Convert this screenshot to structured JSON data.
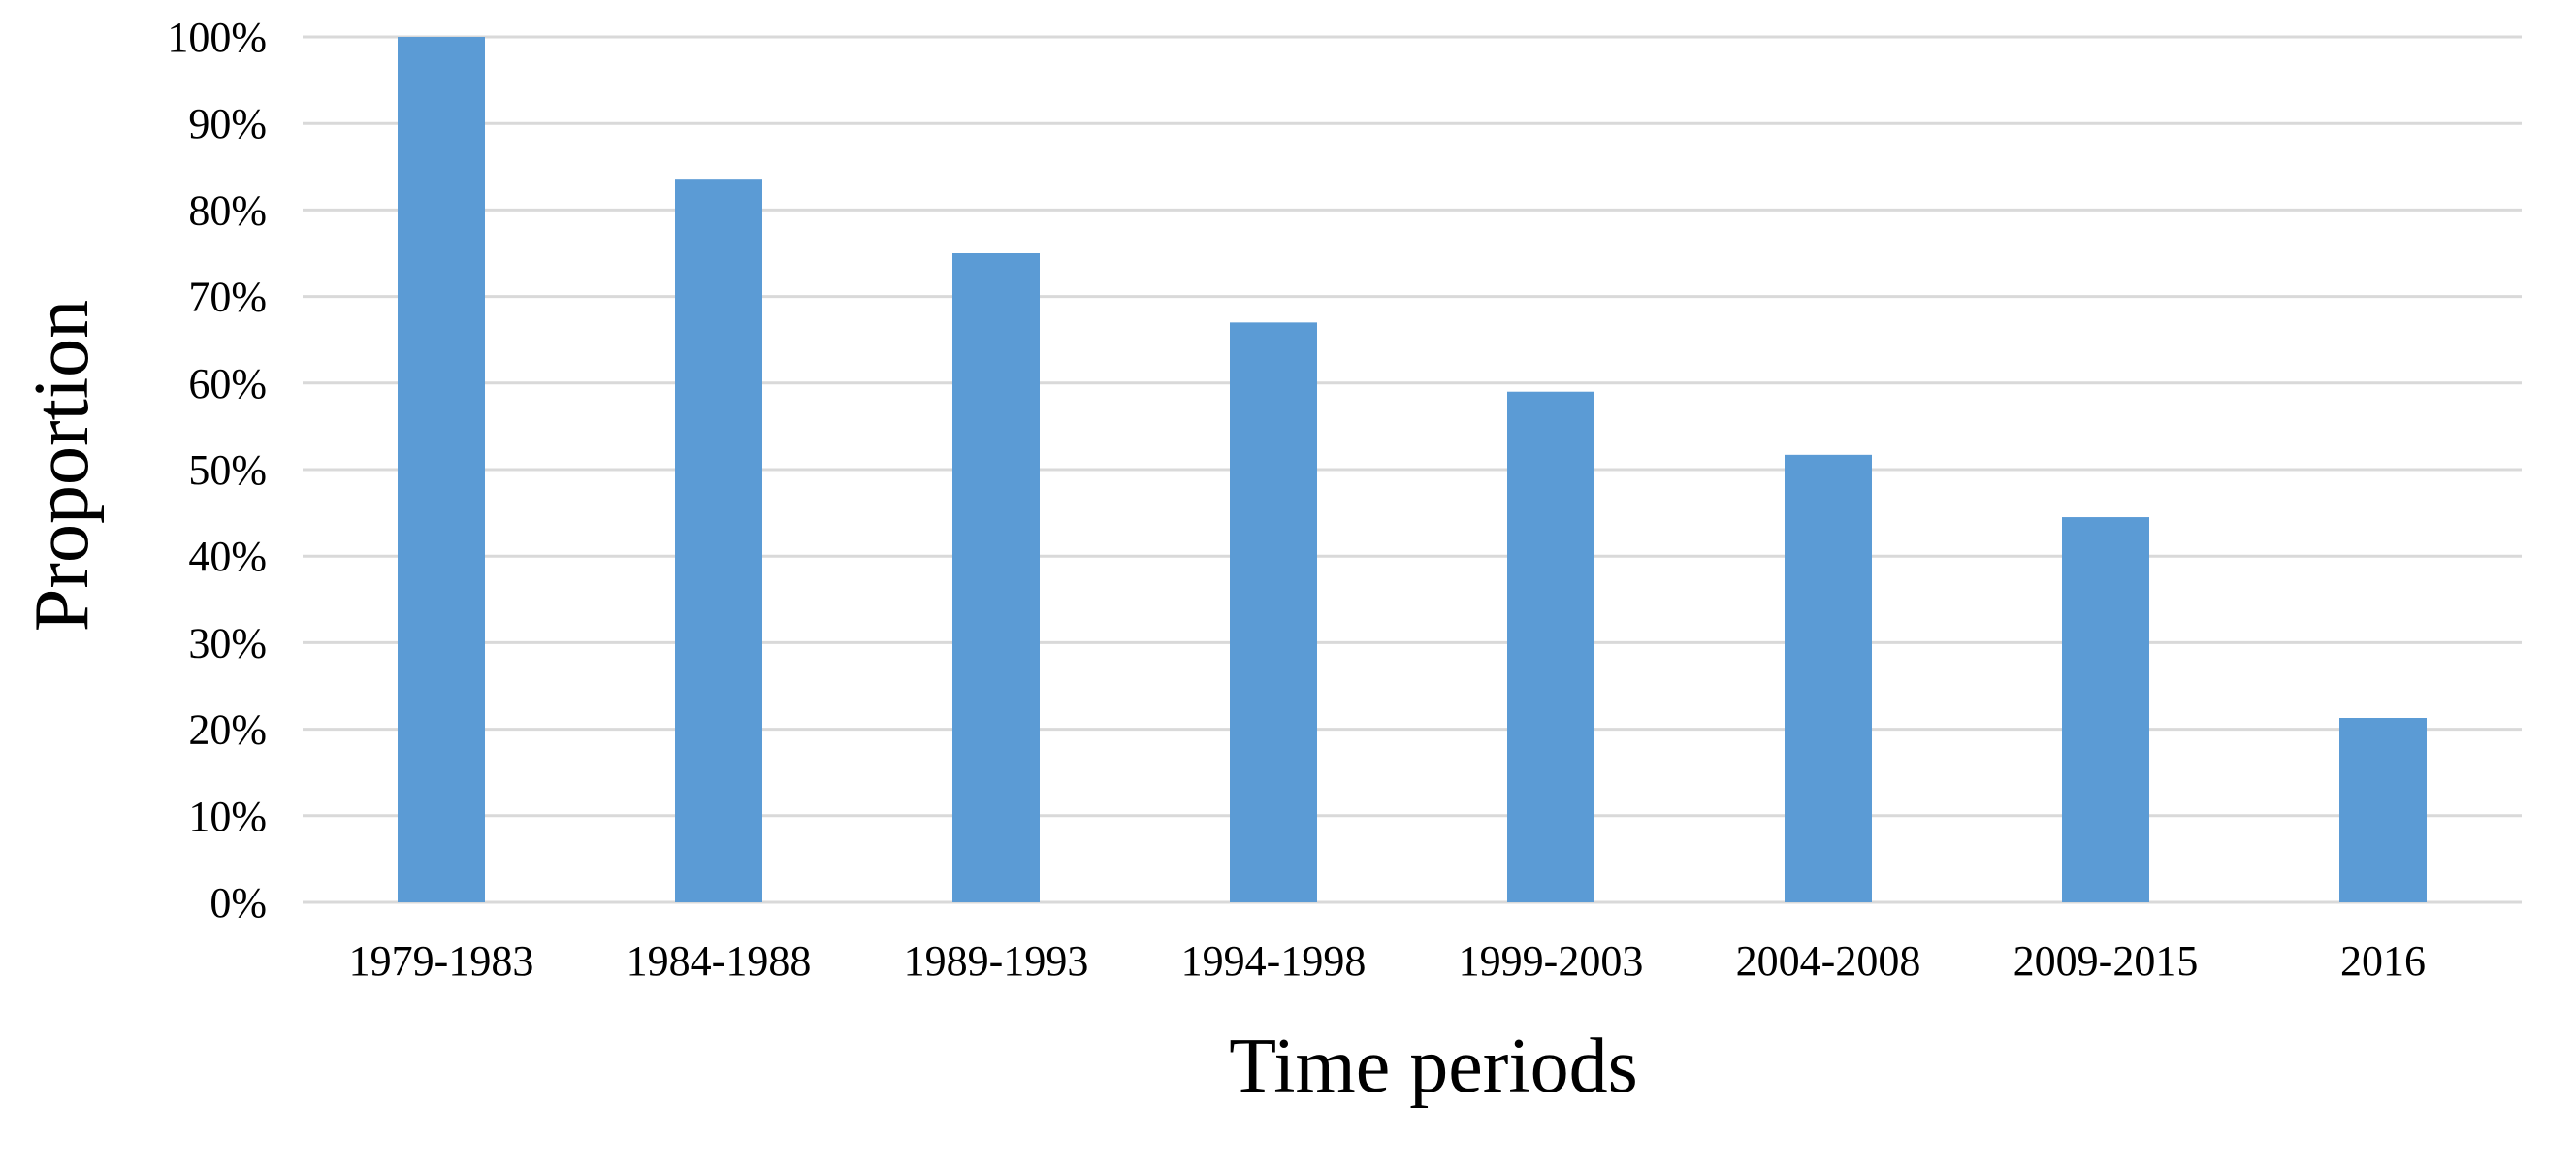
{
  "chart_data": {
    "type": "bar",
    "title": "",
    "xlabel": "Time periods",
    "ylabel": "Proportion",
    "categories": [
      "1979-1983",
      "1984-1988",
      "1989-1993",
      "1994-1998",
      "1999-2003",
      "2004-2008",
      "2009-2015",
      "2016"
    ],
    "values": [
      100,
      83.5,
      75,
      67,
      59,
      51.7,
      44.5,
      21.3
    ],
    "ylim": [
      0,
      100
    ],
    "ytick_step": 10,
    "ytick_suffix": "%",
    "grid": true,
    "legend": "none",
    "bar_color": "#5b9bd5"
  }
}
